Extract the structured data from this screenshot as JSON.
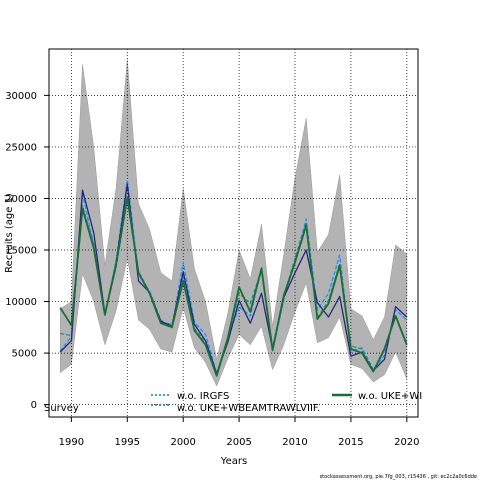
{
  "footer": "stockassessment.org, pie.7fg_003, r15436 , git: ec2c2a0c6dde",
  "chart_data": {
    "type": "line",
    "xlabel": "Years",
    "ylabel": "Recruits (age 1)",
    "xlim": [
      1988,
      2021
    ],
    "ylim": [
      -1200,
      34500
    ],
    "x_ticks": [
      1990,
      1995,
      2000,
      2005,
      2010,
      2015,
      2020
    ],
    "y_ticks": [
      0,
      5000,
      10000,
      15000,
      20000,
      25000,
      30000
    ],
    "grid": true,
    "grid_style": "dotted",
    "legend_placement": "bottom",
    "years": [
      1989,
      1990,
      1991,
      1992,
      1993,
      1994,
      1995,
      1996,
      1997,
      1998,
      1999,
      2000,
      2001,
      2002,
      2003,
      2004,
      2005,
      2006,
      2007,
      2008,
      2009,
      2010,
      2011,
      2012,
      2013,
      2014,
      2015,
      2016,
      2017,
      2018,
      2019,
      2020
    ],
    "confidence_band": {
      "color": "#b3b3b3",
      "lower": [
        3100,
        3900,
        12700,
        10000,
        5800,
        9100,
        14200,
        8200,
        7300,
        5400,
        5100,
        9400,
        5500,
        4100,
        1800,
        4500,
        6800,
        5800,
        7600,
        3400,
        5800,
        9000,
        11800,
        6000,
        6500,
        8500,
        3900,
        3500,
        2200,
        2900,
        5100,
        2500
      ],
      "upper": [
        9300,
        10000,
        33000,
        25000,
        13500,
        21000,
        33500,
        19500,
        17000,
        12800,
        12000,
        21000,
        13200,
        10000,
        4400,
        8900,
        15000,
        12200,
        17500,
        7600,
        14600,
        22000,
        27800,
        14800,
        16500,
        22300,
        9300,
        8600,
        6300,
        8500,
        15500,
        14600
      ]
    },
    "series": [
      {
        "name": "w.o. IRGFS",
        "color": "#1e90ff",
        "style": "dashed",
        "values": [
          5200,
          6600,
          20500,
          15500,
          8600,
          14000,
          21800,
          12600,
          11000,
          8200,
          7500,
          13800,
          8000,
          6800,
          3000,
          6500,
          9500,
          8600,
          13300,
          5200,
          10200,
          14000,
          18000,
          9200,
          10800,
          14500,
          5200,
          5500,
          3400,
          4800,
          9200,
          8200
        ]
      },
      {
        "name": "w.o. UKE+WBEAMTRAWLVIIF.",
        "color": "#2e8b8b",
        "style": "dashed",
        "values": [
          6900,
          6700,
          19300,
          15600,
          8800,
          13300,
          19900,
          12900,
          10900,
          8000,
          7800,
          12500,
          7400,
          6100,
          3000,
          6500,
          10800,
          9800,
          13100,
          5500,
          10500,
          14200,
          17700,
          8400,
          10100,
          13700,
          5700,
          5400,
          3300,
          5500,
          8700,
          5800
        ]
      },
      {
        "name": "w.o. UKE+WI",
        "color": "#1a6e35",
        "style": "solid",
        "values": [
          9400,
          7700,
          19000,
          15200,
          8700,
          13600,
          20100,
          12800,
          10800,
          7900,
          7500,
          12000,
          7200,
          5800,
          2800,
          6500,
          11400,
          9000,
          13200,
          5300,
          10600,
          13800,
          17400,
          8300,
          9800,
          13500,
          5400,
          5000,
          3200,
          5400,
          8600,
          5800
        ]
      },
      {
        "name": "",
        "color": "#27277a",
        "style": "solid",
        "values": [
          5100,
          6200,
          20800,
          16700,
          8800,
          13700,
          21400,
          12000,
          10900,
          8100,
          7600,
          12900,
          7800,
          6200,
          3000,
          6100,
          10100,
          7900,
          10800,
          5400,
          10400,
          12800,
          15000,
          9900,
          8500,
          10500,
          4700,
          5100,
          3300,
          4400,
          9500,
          8500
        ]
      }
    ],
    "legend": [
      {
        "label": "w.o. IRGFS",
        "series": 0
      },
      {
        "label": "w.o. UKE+WBEAMTRAWLVIIF.",
        "series": 1
      },
      {
        "label": "w.o. UKE+WI",
        "series": 2
      },
      {
        "label": "Survey",
        "series": null
      }
    ]
  }
}
